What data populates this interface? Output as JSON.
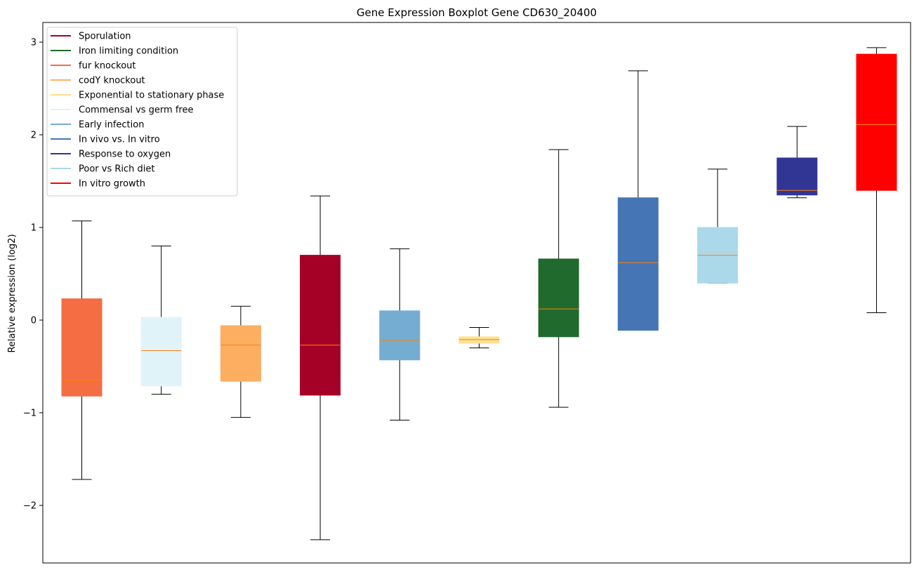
{
  "chart_data": {
    "type": "boxplot",
    "title": "Gene Expression Boxplot Gene CD630_20400",
    "xlabel": "",
    "ylabel": "Relative expression (log2)",
    "ylim": [
      -2.6,
      3.2
    ],
    "yticks": [
      -2,
      -1,
      0,
      1,
      2,
      3
    ],
    "ytick_labels": [
      "−2",
      "−1",
      "0",
      "1",
      "2",
      "3"
    ],
    "grid": false,
    "legend_position": "top-left",
    "median_color": "#ff7f0e",
    "series": [
      {
        "name": "fur knockout",
        "color": "#f46d43",
        "whisker_low": -1.72,
        "q1": -0.82,
        "median": -0.65,
        "q3": 0.23,
        "whisker_high": 1.07
      },
      {
        "name": "Commensal vs germ free",
        "color": "#e0f3f8",
        "whisker_low": -0.8,
        "q1": -0.71,
        "median": -0.33,
        "q3": 0.03,
        "whisker_high": 0.8
      },
      {
        "name": "codY knockout",
        "color": "#fdae61",
        "whisker_low": -1.05,
        "q1": -0.66,
        "median": -0.27,
        "q3": -0.06,
        "whisker_high": 0.15
      },
      {
        "name": "Sporulation",
        "color": "#a50026",
        "whisker_low": -2.37,
        "q1": -0.81,
        "median": -0.27,
        "q3": 0.7,
        "whisker_high": 1.34
      },
      {
        "name": "Early infection",
        "color": "#74add1",
        "whisker_low": -1.08,
        "q1": -0.43,
        "median": -0.22,
        "q3": 0.1,
        "whisker_high": 0.77
      },
      {
        "name": "Exponential to stationary phase",
        "color": "#fee090",
        "whisker_low": -0.3,
        "q1": -0.25,
        "median": -0.21,
        "q3": -0.18,
        "whisker_high": -0.08
      },
      {
        "name": "Iron limiting condition",
        "color": "#216a2e",
        "whisker_low": -0.94,
        "q1": -0.18,
        "median": 0.12,
        "q3": 0.66,
        "whisker_high": 1.84
      },
      {
        "name": "In vivo vs. In vitro",
        "color": "#4575b4",
        "whisker_low": -0.11,
        "q1": -0.11,
        "median": 0.62,
        "q3": 1.32,
        "whisker_high": 2.69
      },
      {
        "name": "Poor vs Rich diet",
        "color": "#abd9e9",
        "whisker_low": 0.4,
        "q1": 0.4,
        "median": 0.7,
        "q3": 1.0,
        "whisker_high": 1.63
      },
      {
        "name": "Response to oxygen",
        "color": "#313695",
        "whisker_low": 1.32,
        "q1": 1.35,
        "median": 1.4,
        "q3": 1.75,
        "whisker_high": 2.09
      },
      {
        "name": "In vitro growth",
        "color": "#ff0000",
        "whisker_low": 0.08,
        "q1": 1.4,
        "median": 2.11,
        "q3": 2.87,
        "whisker_high": 2.94
      }
    ],
    "legend": [
      {
        "label": "Sporulation",
        "color": "#a50026"
      },
      {
        "label": "Iron limiting condition",
        "color": "#216a2e"
      },
      {
        "label": "fur knockout",
        "color": "#f46d43"
      },
      {
        "label": "codY knockout",
        "color": "#fdae61"
      },
      {
        "label": "Exponential to stationary phase",
        "color": "#fee090"
      },
      {
        "label": "Commensal vs germ free",
        "color": "#e0f3f8"
      },
      {
        "label": "Early infection",
        "color": "#74add1"
      },
      {
        "label": "In vivo vs. In vitro",
        "color": "#4575b4"
      },
      {
        "label": "Response to oxygen",
        "color": "#313695"
      },
      {
        "label": "Poor vs Rich diet",
        "color": "#abd9e9"
      },
      {
        "label": "In vitro growth",
        "color": "#ff0000"
      }
    ]
  }
}
